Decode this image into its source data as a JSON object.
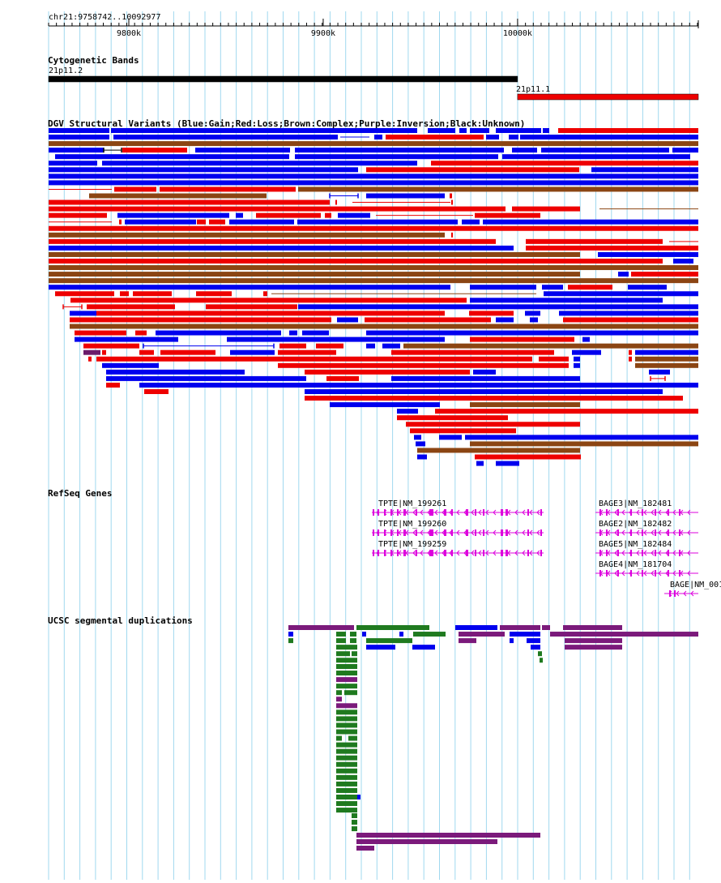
{
  "browser": {
    "location": "chr21:9758742..10092977",
    "ruler": {
      "start": 9758742,
      "end": 10092977,
      "tick_labels": [
        "9800k",
        "9900k",
        "10000k"
      ]
    }
  },
  "colors": {
    "gain": "#0000ee",
    "loss": "#ee0000",
    "complex": "#8b4513",
    "inversion": "#6a1b6a",
    "unknown": "#000000",
    "gene": "#dd00dd",
    "segdup_green": "#1f7a1f",
    "segdup_purple": "#7b1a7b",
    "segdup_blue": "#0000ee",
    "band_black": "#000000",
    "band_red": "#ee0000",
    "grid": "#a0d8ef"
  },
  "tracks": {
    "cytoband": {
      "title": "Cytogenetic Bands",
      "bands": [
        {
          "name": "21p11.2",
          "start": 9758742,
          "end": 10000000,
          "stain": "black"
        },
        {
          "name": "21p11.1",
          "start": 10000000,
          "end": 10092977,
          "stain": "red"
        }
      ]
    },
    "dgv": {
      "title": "DGV Structural Variants (Blue:Gain;Red:Loss;Brown:Complex;Purple:Inversion;Black:Unknown)"
    },
    "refseq": {
      "title": "RefSeq Genes",
      "genes": [
        {
          "label": "TPTE|NM_199261",
          "start": 9920000,
          "end": 10008000
        },
        {
          "label": "TPTE|NM_199260",
          "start": 9920000,
          "end": 10008000
        },
        {
          "label": "TPTE|NM_199259",
          "start": 9920000,
          "end": 10008000
        },
        {
          "label": "BAGE3|NM_182481",
          "start": 10034000,
          "end": 10092977
        },
        {
          "label": "BAGE2|NM_182482",
          "start": 10034000,
          "end": 10092977
        },
        {
          "label": "BAGE5|NM_182484",
          "start": 10034000,
          "end": 10092977
        },
        {
          "label": "BAGE4|NM_181704",
          "start": 10034000,
          "end": 10092977
        },
        {
          "label": "BAGE|NM_001",
          "start": 10074000,
          "end": 10092977
        }
      ]
    },
    "segdup": {
      "title": "UCSC segmental duplications"
    }
  }
}
